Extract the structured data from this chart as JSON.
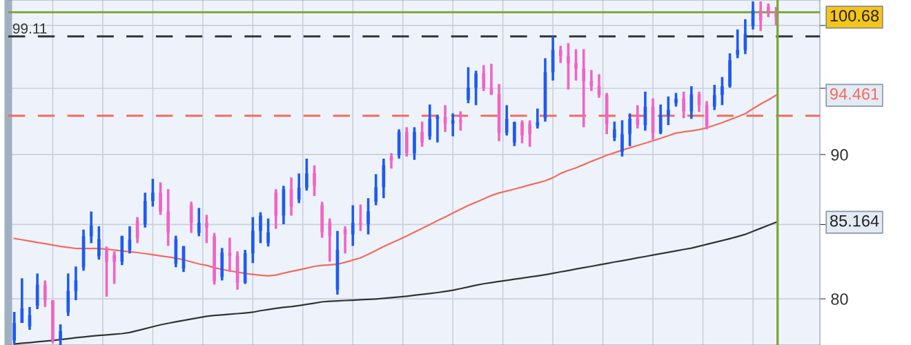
{
  "chart_data": {
    "type": "candlestick",
    "categories": [
      null,
      null,
      null,
      null,
      null,
      null,
      null,
      null,
      null,
      null,
      null,
      null,
      null,
      null,
      null,
      null,
      null,
      null,
      null,
      null,
      null,
      null,
      null,
      null,
      null,
      null,
      null,
      null,
      null,
      null,
      null,
      null,
      null,
      null,
      null,
      null,
      null,
      null,
      null,
      null,
      null,
      null,
      null,
      null,
      null,
      null,
      null,
      null,
      null,
      null,
      null,
      null,
      null,
      null,
      null,
      null,
      null,
      null,
      null,
      null,
      null,
      null,
      null,
      null,
      null,
      null,
      null,
      null,
      null,
      null,
      null,
      null,
      null,
      null,
      null,
      null,
      null,
      null,
      null,
      null,
      null,
      null,
      null,
      null,
      null,
      null,
      null,
      null,
      null,
      null,
      null,
      null,
      null,
      null,
      null,
      null,
      null,
      null,
      null,
      null
    ],
    "ohlc": [
      [
        77.33,
        79.15,
        77.11,
        78.44
      ],
      [
        78.44,
        81.35,
        78.44,
        79.38
      ],
      [
        78.22,
        79.47,
        78.0,
        78.93
      ],
      [
        79.55,
        81.67,
        79.33,
        80.93
      ],
      [
        80.93,
        81.21,
        79.47,
        79.91
      ],
      [
        79.91,
        79.91,
        77.15,
        77.33
      ],
      [
        77.33,
        78.35,
        77.02,
        77.91
      ],
      [
        79.11,
        81.67,
        78.89,
        80.51
      ],
      [
        80.51,
        82.14,
        79.91,
        81.21
      ],
      [
        82.09,
        84.65,
        81.86,
        84.19
      ],
      [
        84.19,
        85.91,
        83.72,
        84.93
      ],
      [
        82.84,
        84.88,
        82.6,
        84.0
      ],
      [
        83.26,
        83.49,
        80.14,
        82.46
      ],
      [
        82.93,
        83.16,
        80.98,
        82.46
      ],
      [
        82.46,
        84.23,
        82.23,
        84.19
      ],
      [
        83.26,
        84.88,
        83.02,
        83.95
      ],
      [
        85.27,
        85.52,
        83.72,
        84.09
      ],
      [
        85.02,
        87.24,
        84.79,
        86.65
      ],
      [
        86.65,
        88.23,
        86.26,
        87.24
      ],
      [
        87.24,
        87.98,
        85.67,
        85.91
      ],
      [
        85.91,
        87.49,
        83.53,
        84.46
      ],
      [
        82.33,
        84.23,
        82.09,
        84.0
      ],
      [
        82.0,
        83.53,
        81.77,
        83.49
      ],
      [
        86.35,
        86.6,
        84.42,
        85.12
      ],
      [
        84.42,
        86.16,
        84.19,
        85.12
      ],
      [
        85.12,
        85.67,
        83.72,
        84.79
      ],
      [
        84.19,
        84.42,
        80.93,
        81.16
      ],
      [
        81.44,
        83.39,
        81.21,
        83.07
      ],
      [
        83.07,
        84.09,
        81.77,
        82.84
      ],
      [
        82.84,
        83.16,
        80.6,
        81.07
      ],
      [
        81.07,
        83.26,
        80.98,
        83.02
      ],
      [
        83.02,
        85.52,
        82.37,
        84.56
      ],
      [
        84.56,
        85.86,
        83.72,
        85.62
      ],
      [
        83.72,
        85.42,
        83.49,
        84.46
      ],
      [
        87.24,
        87.49,
        84.7,
        85.62
      ],
      [
        85.62,
        87.73,
        85.02,
        87.49
      ],
      [
        87.49,
        88.33,
        85.62,
        86.26
      ],
      [
        86.75,
        88.62,
        86.5,
        87.59
      ],
      [
        87.59,
        89.7,
        87.39,
        88.62
      ],
      [
        88.62,
        89.21,
        87.0,
        87.73
      ],
      [
        86.35,
        86.6,
        84.09,
        84.46
      ],
      [
        85.17,
        85.42,
        82.46,
        84.23
      ],
      [
        80.6,
        84.56,
        80.28,
        83.26
      ],
      [
        84.65,
        84.88,
        83.02,
        84.32
      ],
      [
        84.32,
        86.35,
        83.53,
        85.12
      ],
      [
        85.12,
        86.4,
        84.56,
        85.02
      ],
      [
        85.02,
        86.85,
        84.32,
        85.91
      ],
      [
        86.6,
        88.57,
        86.35,
        87.64
      ],
      [
        87.64,
        89.7,
        86.85,
        89.21
      ],
      [
        89.85,
        90.1,
        88.97,
        89.56
      ],
      [
        89.95,
        91.87,
        89.7,
        91.67
      ],
      [
        91.67,
        92.03,
        89.85,
        90.1
      ],
      [
        90.1,
        92.03,
        89.61,
        91.67
      ],
      [
        91.67,
        92.45,
        90.57,
        90.89
      ],
      [
        91.35,
        93.75,
        91.09,
        92.66
      ],
      [
        92.66,
        92.97,
        90.89,
        92.81
      ],
      [
        92.81,
        93.7,
        91.67,
        92.29
      ],
      [
        92.29,
        93.07,
        91.35,
        92.55
      ],
      [
        92.55,
        93.23,
        91.77,
        92.45
      ],
      [
        94.11,
        96.65,
        93.85,
        95.05
      ],
      [
        95.05,
        96.37,
        93.7,
        96.15
      ],
      [
        96.15,
        96.81,
        94.79,
        95.0
      ],
      [
        95.0,
        96.92,
        94.48,
        94.53
      ],
      [
        94.53,
        95.33,
        90.99,
        91.61
      ],
      [
        91.61,
        93.7,
        91.41,
        92.66
      ],
      [
        90.89,
        92.45,
        90.62,
        92.4
      ],
      [
        92.4,
        92.55,
        90.83,
        91.41
      ],
      [
        92.29,
        92.55,
        90.57,
        91.51
      ],
      [
        92.14,
        93.44,
        91.93,
        92.4
      ],
      [
        92.71,
        97.36,
        92.45,
        96.26
      ],
      [
        96.26,
        99.11,
        95.6,
        98.02
      ],
      [
        98.02,
        98.35,
        96.98,
        97.53
      ],
      [
        97.53,
        98.57,
        94.9,
        96.98
      ],
      [
        96.98,
        98.08,
        95.6,
        96.54
      ],
      [
        96.54,
        98.08,
        92.03,
        95.55
      ],
      [
        95.55,
        96.43,
        94.79,
        95.16
      ],
      [
        95.16,
        96.1,
        94.27,
        94.48
      ],
      [
        94.48,
        94.64,
        91.51,
        92.29
      ],
      [
        91.25,
        92.45,
        90.99,
        91.87
      ],
      [
        90.21,
        92.55,
        89.85,
        91.51
      ],
      [
        91.51,
        93.07,
        90.62,
        92.66
      ],
      [
        92.66,
        93.7,
        91.93,
        92.19
      ],
      [
        92.19,
        94.74,
        91.77,
        93.59
      ],
      [
        93.59,
        94.22,
        91.09,
        91.61
      ],
      [
        91.61,
        93.75,
        91.51,
        92.92
      ],
      [
        92.92,
        94.37,
        92.19,
        93.33
      ],
      [
        93.85,
        94.64,
        93.59,
        94.22
      ],
      [
        94.22,
        94.74,
        92.71,
        93.23
      ],
      [
        93.23,
        95.16,
        92.66,
        94.53
      ],
      [
        94.53,
        94.74,
        93.18,
        93.7
      ],
      [
        93.7,
        94.01,
        91.87,
        92.14
      ],
      [
        93.59,
        95.27,
        93.33,
        94.48
      ],
      [
        94.48,
        95.88,
        93.7,
        95.16
      ],
      [
        95.16,
        97.75,
        95.05,
        97.2
      ],
      [
        97.64,
        99.67,
        97.36,
        98.02
      ],
      [
        98.02,
        100.51,
        97.69,
        99.29
      ],
      [
        99.95,
        101.98,
        99.67,
        101.24
      ],
      [
        101.24,
        101.98,
        99.56,
        100.4
      ],
      [
        101.53,
        101.81,
        100.68,
        100.96
      ],
      [
        100.96,
        101.53,
        100.0,
        100.68
      ]
    ],
    "colors": [
      "#1f5af0",
      "#1f5af0",
      "#1f5af0",
      "#1f5af0",
      "#f064c4",
      "#f064c4",
      "#1f5af0",
      "#1f5af0",
      "#1f5af0",
      "#1f5af0",
      "#1f5af0",
      "#1f5af0",
      "#f064c4",
      "#f064c4",
      "#1f5af0",
      "#1f5af0",
      "#f064c4",
      "#1f5af0",
      "#1f5af0",
      "#f064c4",
      "#f064c4",
      "#1f5af0",
      "#1f5af0",
      "#f064c4",
      "#1f5af0",
      "#f064c4",
      "#f064c4",
      "#1f5af0",
      "#f064c4",
      "#f064c4",
      "#1f5af0",
      "#1f5af0",
      "#1f5af0",
      "#1f5af0",
      "#f064c4",
      "#1f5af0",
      "#f064c4",
      "#1f5af0",
      "#1f5af0",
      "#f064c4",
      "#f064c4",
      "#f064c4",
      "#1f5af0",
      "#f064c4",
      "#1f5af0",
      "#f064c4",
      "#1f5af0",
      "#1f5af0",
      "#1f5af0",
      "#f064c4",
      "#1f5af0",
      "#f064c4",
      "#1f5af0",
      "#f064c4",
      "#1f5af0",
      "#1f5af0",
      "#f064c4",
      "#1f5af0",
      "#f064c4",
      "#1f5af0",
      "#1f5af0",
      "#f064c4",
      "#f064c4",
      "#f064c4",
      "#1f5af0",
      "#1f5af0",
      "#f064c4",
      "#f064c4",
      "#1f5af0",
      "#1f5af0",
      "#1f5af0",
      "#f064c4",
      "#f064c4",
      "#f064c4",
      "#f064c4",
      "#f064c4",
      "#f064c4",
      "#f064c4",
      "#1f5af0",
      "#1f5af0",
      "#1f5af0",
      "#f064c4",
      "#1f5af0",
      "#f064c4",
      "#1f5af0",
      "#1f5af0",
      "#1f5af0",
      "#f064c4",
      "#1f5af0",
      "#f064c4",
      "#f064c4",
      "#1f5af0",
      "#1f5af0",
      "#1f5af0",
      "#1f5af0",
      "#1f5af0",
      "#1f5af0",
      "#f064c4",
      "#f064c4",
      "#f064c4"
    ],
    "series": [
      {
        "type": "line",
        "color": "#f26b5b",
        "values": [
          84.04,
          83.95,
          83.86,
          83.77,
          83.68,
          83.59,
          83.5,
          83.43,
          83.36,
          83.36,
          83.36,
          83.36,
          83.31,
          83.25,
          83.19,
          83.13,
          83.08,
          83.01,
          82.93,
          82.85,
          82.78,
          82.7,
          82.59,
          82.45,
          82.31,
          82.21,
          82.06,
          81.94,
          81.85,
          81.76,
          81.67,
          81.61,
          81.56,
          81.51,
          81.57,
          81.69,
          81.81,
          81.91,
          82.03,
          82.15,
          82.21,
          82.25,
          82.29,
          82.42,
          82.57,
          82.72,
          82.96,
          83.22,
          83.49,
          83.73,
          83.96,
          84.21,
          84.47,
          84.73,
          85.0,
          85.27,
          85.53,
          85.8,
          86.07,
          86.34,
          86.56,
          86.8,
          87.04,
          87.22,
          87.36,
          87.5,
          87.64,
          87.8,
          87.94,
          88.09,
          88.31,
          88.62,
          88.84,
          89.03,
          89.26,
          89.5,
          89.72,
          89.95,
          90.13,
          90.32,
          90.5,
          90.67,
          90.84,
          91.02,
          91.2,
          91.39,
          91.59,
          91.68,
          91.76,
          91.85,
          91.99,
          92.18,
          92.37,
          92.59,
          92.82,
          93.05,
          93.43,
          93.79,
          94.11,
          94.46
        ]
      },
      {
        "type": "line",
        "color": "#333333",
        "values": [
          77.1,
          77.15,
          77.19,
          77.24,
          77.28,
          77.33,
          77.38,
          77.44,
          77.5,
          77.55,
          77.6,
          77.64,
          77.68,
          77.72,
          77.76,
          77.83,
          77.95,
          78.07,
          78.2,
          78.32,
          78.42,
          78.51,
          78.6,
          78.69,
          78.78,
          78.87,
          78.92,
          78.96,
          79.0,
          79.04,
          79.08,
          79.13,
          79.23,
          79.3,
          79.38,
          79.45,
          79.49,
          79.56,
          79.64,
          79.72,
          79.8,
          79.84,
          79.86,
          79.89,
          79.91,
          79.94,
          79.96,
          79.99,
          80.03,
          80.08,
          80.12,
          80.17,
          80.23,
          80.29,
          80.35,
          80.41,
          80.48,
          80.56,
          80.67,
          80.78,
          80.89,
          80.99,
          81.06,
          81.14,
          81.21,
          81.29,
          81.36,
          81.44,
          81.51,
          81.59,
          81.68,
          81.78,
          81.87,
          81.97,
          82.06,
          82.15,
          82.25,
          82.34,
          82.44,
          82.53,
          82.62,
          82.72,
          82.81,
          82.91,
          83.0,
          83.1,
          83.19,
          83.29,
          83.38,
          83.51,
          83.64,
          83.77,
          83.9,
          84.03,
          84.17,
          84.32,
          84.53,
          84.74,
          84.95,
          85.16
        ]
      }
    ],
    "log": true,
    "ylim": [
      77.04,
      102.1
    ],
    "yticks": [
      80,
      {
        "value": 85,
        "label": null
      },
      90,
      {
        "value": 95,
        "label": null
      },
      {
        "value": 100,
        "label": null
      }
    ],
    "grid": true,
    "line_style": "solid",
    "ref_lines": [
      {
        "axis": "y",
        "value": 99.11,
        "label": "99.11",
        "color": "#333333",
        "line_style": "dashed"
      },
      {
        "axis": "y",
        "value": 92.89,
        "color": "#f26b5b",
        "line_style": "dashed"
      },
      {
        "axis": "y",
        "value": 101.08,
        "color": "#7aa838",
        "line_style": "solid"
      }
    ],
    "annotations": [
      "100.68",
      "94.461",
      "85.164"
    ]
  }
}
